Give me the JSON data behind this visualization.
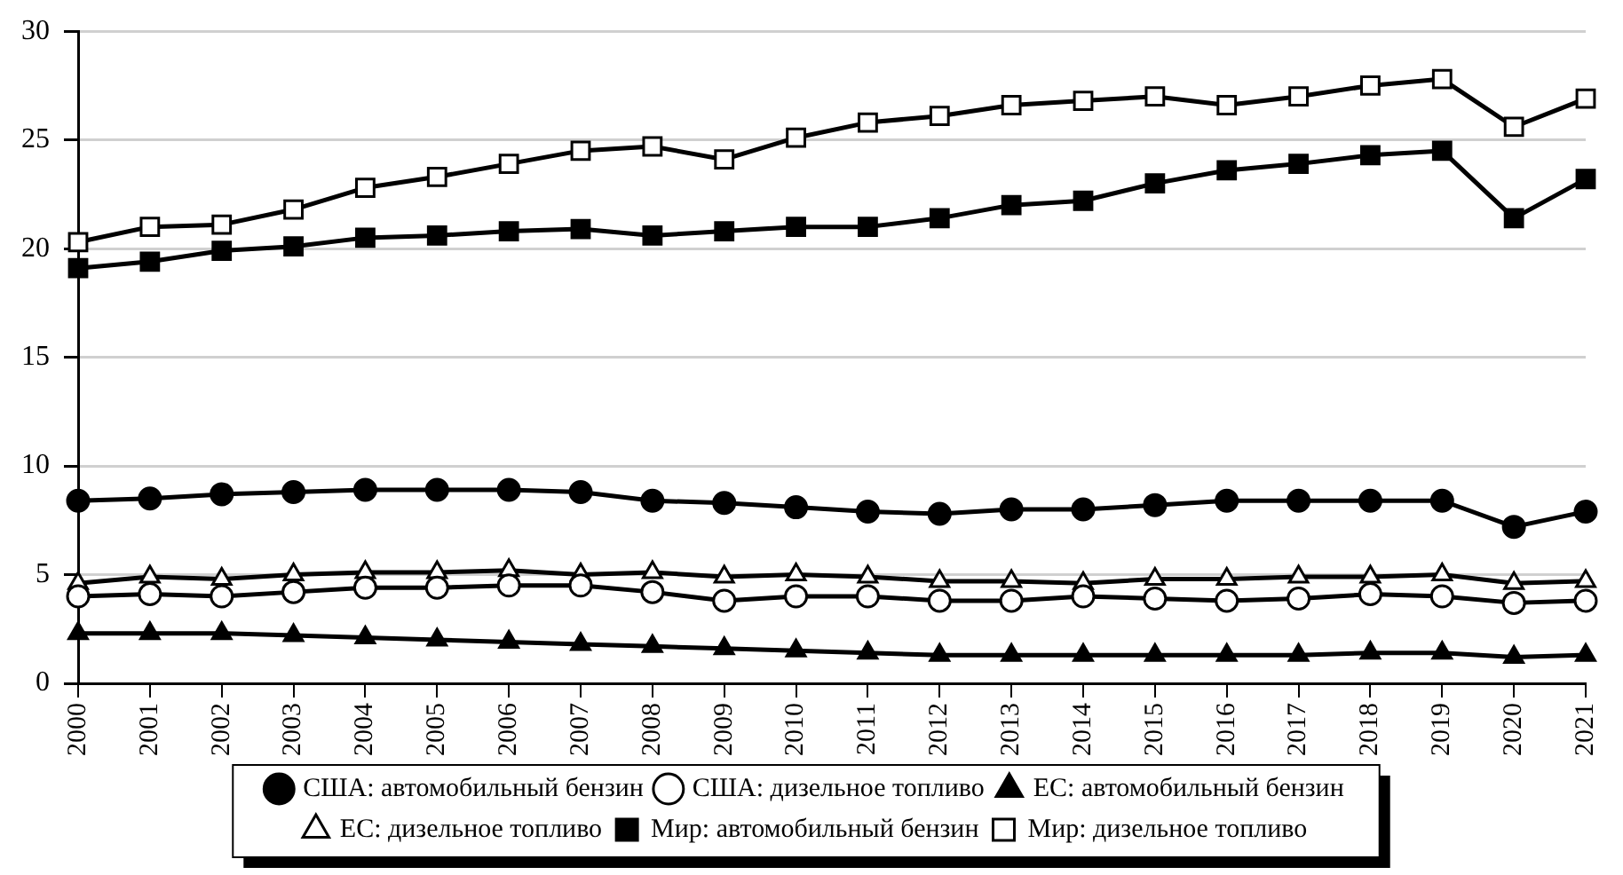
{
  "chart_data": {
    "type": "line",
    "categories": [
      "2000",
      "2001",
      "2002",
      "2003",
      "2004",
      "2005",
      "2006",
      "2007",
      "2008",
      "2009",
      "2010",
      "2011",
      "2012",
      "2013",
      "2014",
      "2015",
      "2016",
      "2017",
      "2018",
      "2019",
      "2020",
      "2021"
    ],
    "ylim": [
      0,
      30
    ],
    "yticks": [
      0,
      5,
      10,
      15,
      20,
      25,
      30
    ],
    "grid": "y",
    "legend": "bottom",
    "line_style": "solid",
    "series": [
      {
        "name": "США: автомобильный бензин",
        "color": "#000000",
        "marker": "circle",
        "values": [
          8.4,
          8.5,
          8.7,
          8.8,
          8.9,
          8.9,
          8.9,
          8.8,
          8.4,
          8.3,
          8.1,
          7.9,
          7.8,
          8.0,
          8.0,
          8.2,
          8.4,
          8.4,
          8.4,
          8.4,
          7.2,
          7.9
        ]
      },
      {
        "name": "США: дизельное топливо",
        "color": "#ffffff",
        "marker": "circle",
        "values": [
          4.0,
          4.1,
          4.0,
          4.2,
          4.4,
          4.4,
          4.5,
          4.5,
          4.2,
          3.8,
          4.0,
          4.0,
          3.8,
          3.8,
          4.0,
          3.9,
          3.8,
          3.9,
          4.1,
          4.0,
          3.7,
          3.8
        ]
      },
      {
        "name": "ЕС: автомобильный бензин",
        "color": "#000000",
        "marker": "triangle",
        "values": [
          2.3,
          2.3,
          2.3,
          2.2,
          2.1,
          2.0,
          1.9,
          1.8,
          1.7,
          1.6,
          1.5,
          1.4,
          1.3,
          1.3,
          1.3,
          1.3,
          1.3,
          1.3,
          1.4,
          1.4,
          1.2,
          1.3
        ]
      },
      {
        "name": "ЕС: дизельное топливо",
        "color": "#ffffff",
        "marker": "triangle",
        "values": [
          4.6,
          4.9,
          4.8,
          5.0,
          5.1,
          5.1,
          5.2,
          5.0,
          5.1,
          4.9,
          5.0,
          4.9,
          4.7,
          4.7,
          4.6,
          4.8,
          4.8,
          4.9,
          4.9,
          5.0,
          4.6,
          4.7
        ]
      },
      {
        "name": "Мир: автомобильный бензин",
        "color": "#000000",
        "marker": "square",
        "values": [
          19.1,
          19.4,
          19.9,
          20.1,
          20.5,
          20.6,
          20.8,
          20.9,
          20.6,
          20.8,
          21.0,
          21.0,
          21.4,
          22.0,
          22.2,
          23.0,
          23.6,
          23.9,
          24.3,
          24.5,
          21.4,
          23.2
        ]
      },
      {
        "name": "Мир: дизельное топливо",
        "color": "#ffffff",
        "marker": "square",
        "values": [
          20.3,
          21.0,
          21.1,
          21.8,
          22.8,
          23.3,
          23.9,
          24.5,
          24.7,
          24.1,
          25.1,
          25.8,
          26.1,
          26.6,
          26.8,
          27.0,
          26.6,
          27.0,
          27.5,
          27.8,
          25.6,
          26.9
        ]
      }
    ]
  }
}
